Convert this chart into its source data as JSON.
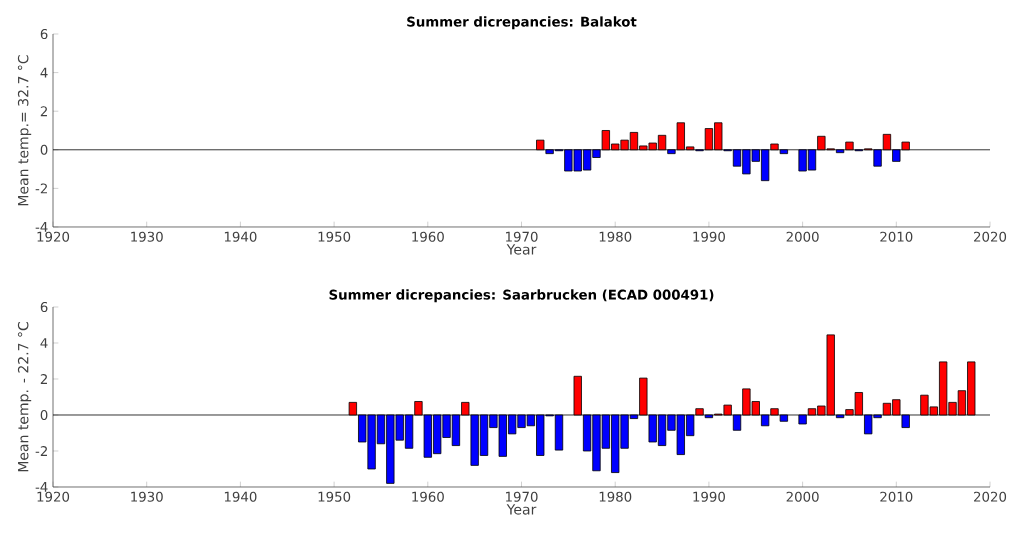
{
  "chart_data": [
    {
      "type": "bar",
      "title": "Summer dicrepancies: Balakot",
      "xlabel": "Year",
      "ylabel": "Mean temp.= 32.7 °C",
      "x": [
        1972,
        1973,
        1974,
        1975,
        1976,
        1977,
        1978,
        1979,
        1980,
        1981,
        1982,
        1983,
        1984,
        1985,
        1986,
        1987,
        1988,
        1989,
        1990,
        1991,
        1992,
        1993,
        1994,
        1995,
        1996,
        1997,
        1998,
        1999,
        2000,
        2001,
        2002,
        2003,
        2004,
        2005,
        2006,
        2007,
        2008,
        2009,
        2010,
        2011
      ],
      "values": [
        0.5,
        -0.2,
        -0.05,
        -1.1,
        -1.1,
        -1.05,
        -0.4,
        1.0,
        0.3,
        0.5,
        0.9,
        0.2,
        0.35,
        0.75,
        -0.2,
        1.4,
        0.15,
        -0.05,
        1.1,
        1.4,
        -0.05,
        -0.85,
        -1.25,
        -0.6,
        -1.6,
        0.3,
        -0.2,
        null,
        -1.1,
        -1.05,
        0.7,
        0.05,
        -0.15,
        0.4,
        -0.05,
        0.05,
        -0.85,
        0.8,
        -0.6,
        0.4
      ],
      "colors": [
        "#ff0000",
        "#0000ff",
        "#0000ff",
        "#0000ff",
        "#0000ff",
        "#0000ff",
        "#0000ff",
        "#ff0000",
        "#ff0000",
        "#ff0000",
        "#ff0000",
        "#ff0000",
        "#ff0000",
        "#ff0000",
        "#0000ff",
        "#ff0000",
        "#ff0000",
        "#0000ff",
        "#ff0000",
        "#ff0000",
        "#0000ff",
        "#0000ff",
        "#0000ff",
        "#0000ff",
        "#0000ff",
        "#ff0000",
        "#0000ff",
        "#ff0000",
        "#0000ff",
        "#0000ff",
        "#ff0000",
        "#ff0000",
        "#0000ff",
        "#ff0000",
        "#0000ff",
        "#ff0000",
        "#0000ff",
        "#ff0000",
        "#0000ff",
        "#ff0000"
      ],
      "xlim": [
        1920,
        2020
      ],
      "xticks": [
        1920,
        1930,
        1940,
        1950,
        1960,
        1970,
        1980,
        1990,
        2000,
        2010,
        2020
      ],
      "ylim": [
        -4,
        6
      ],
      "yticks": [
        -4,
        -2,
        0,
        2,
        4,
        6
      ],
      "ref_lines": [
        {
          "axis": "y",
          "value": 0,
          "color": "#000000"
        }
      ]
    },
    {
      "type": "bar",
      "title": "Summer dicrepancies: Saarbrucken (ECAD 000491)",
      "xlabel": "Year",
      "ylabel": "Mean temp. - 22.7 °C",
      "x": [
        1952,
        1953,
        1954,
        1955,
        1956,
        1957,
        1958,
        1959,
        1960,
        1961,
        1962,
        1963,
        1964,
        1965,
        1966,
        1967,
        1968,
        1969,
        1970,
        1971,
        1972,
        1973,
        1974,
        1975,
        1976,
        1977,
        1978,
        1979,
        1980,
        1981,
        1982,
        1983,
        1984,
        1985,
        1986,
        1987,
        1988,
        1989,
        1990,
        1991,
        1992,
        1993,
        1994,
        1995,
        1996,
        1997,
        1998,
        1999,
        2000,
        2001,
        2002,
        2003,
        2004,
        2005,
        2006,
        2007,
        2008,
        2009,
        2010,
        2011,
        2012,
        2013,
        2014,
        2015,
        2016,
        2017,
        2018
      ],
      "values": [
        0.7,
        -1.5,
        -3.0,
        -1.6,
        -3.8,
        -1.4,
        -1.85,
        0.75,
        -2.35,
        -2.15,
        -1.25,
        -1.7,
        0.7,
        -2.8,
        -2.25,
        -0.7,
        -2.3,
        -1.05,
        -0.7,
        -0.6,
        -2.25,
        -0.05,
        -1.95,
        null,
        2.15,
        -2.0,
        -3.1,
        -1.85,
        -3.2,
        -1.85,
        -0.2,
        2.05,
        -1.5,
        -1.7,
        -0.85,
        -2.2,
        -1.15,
        0.35,
        -0.15,
        0.05,
        0.55,
        -0.85,
        1.45,
        0.75,
        -0.6,
        0.35,
        -0.35,
        null,
        -0.5,
        0.35,
        0.5,
        4.45,
        -0.15,
        0.3,
        1.25,
        -1.05,
        -0.15,
        0.65,
        0.85,
        -0.7,
        null,
        1.1,
        0.45,
        2.95,
        0.7,
        1.35,
        2.95
      ],
      "colors": [
        "#ff0000",
        "#0000ff",
        "#0000ff",
        "#0000ff",
        "#0000ff",
        "#0000ff",
        "#0000ff",
        "#ff0000",
        "#0000ff",
        "#0000ff",
        "#0000ff",
        "#0000ff",
        "#ff0000",
        "#0000ff",
        "#0000ff",
        "#0000ff",
        "#0000ff",
        "#0000ff",
        "#0000ff",
        "#0000ff",
        "#0000ff",
        "#0000ff",
        "#0000ff",
        "#ff0000",
        "#ff0000",
        "#0000ff",
        "#0000ff",
        "#0000ff",
        "#0000ff",
        "#0000ff",
        "#0000ff",
        "#ff0000",
        "#0000ff",
        "#0000ff",
        "#0000ff",
        "#0000ff",
        "#0000ff",
        "#ff0000",
        "#0000ff",
        "#ff0000",
        "#ff0000",
        "#0000ff",
        "#ff0000",
        "#ff0000",
        "#0000ff",
        "#ff0000",
        "#0000ff",
        "#ff0000",
        "#0000ff",
        "#ff0000",
        "#ff0000",
        "#ff0000",
        "#0000ff",
        "#ff0000",
        "#ff0000",
        "#0000ff",
        "#0000ff",
        "#ff0000",
        "#ff0000",
        "#0000ff",
        "#ff0000",
        "#ff0000",
        "#ff0000",
        "#ff0000",
        "#ff0000",
        "#ff0000",
        "#ff0000"
      ],
      "xlim": [
        1920,
        2020
      ],
      "xticks": [
        1920,
        1930,
        1940,
        1950,
        1960,
        1970,
        1980,
        1990,
        2000,
        2010,
        2020
      ],
      "ylim": [
        -4,
        6
      ],
      "yticks": [
        -4,
        -2,
        0,
        2,
        4,
        6
      ],
      "ref_lines": [
        {
          "axis": "y",
          "value": 0,
          "color": "#000000"
        }
      ]
    }
  ]
}
